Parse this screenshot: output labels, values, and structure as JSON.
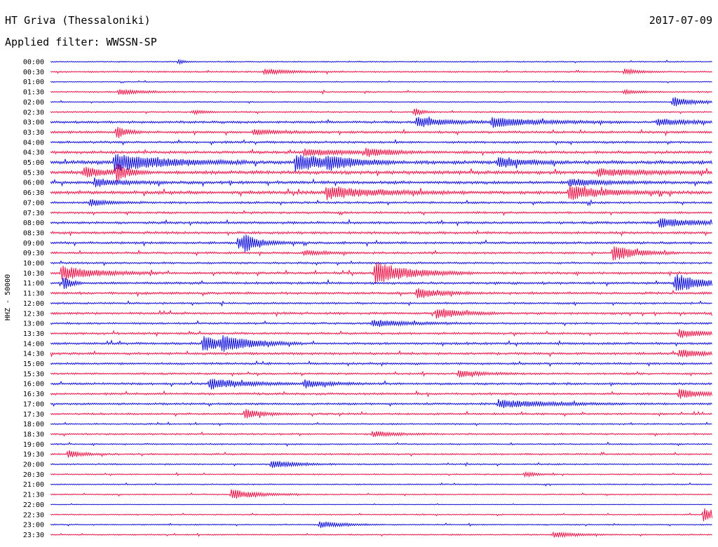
{
  "header": {
    "station": "HT Griva (Thessaloniki)",
    "date": "2017-07-09",
    "filter": "Applied filter: WWSSN-SP"
  },
  "chart_data": {
    "type": "line",
    "ylabel": "HHZ - 50000",
    "row_labels": [
      "00:00",
      "00:30",
      "01:00",
      "01:30",
      "02:00",
      "02:30",
      "03:00",
      "03:30",
      "04:00",
      "04:30",
      "05:00",
      "05:30",
      "06:00",
      "06:30",
      "07:00",
      "07:30",
      "08:00",
      "08:30",
      "09:00",
      "09:30",
      "10:00",
      "10:30",
      "11:00",
      "11:30",
      "12:00",
      "12:30",
      "13:00",
      "13:30",
      "14:00",
      "14:30",
      "15:00",
      "15:30",
      "16:00",
      "16:30",
      "17:00",
      "17:30",
      "18:00",
      "18:30",
      "19:00",
      "19:30",
      "20:00",
      "20:30",
      "21:00",
      "21:30",
      "22:00",
      "22:30",
      "23:00",
      "23:30"
    ],
    "series_colors": [
      "#1010d8",
      "#e8164a"
    ],
    "x_range_minutes": [
      0,
      30
    ],
    "rows_noise": [
      0.5,
      0.6,
      0.4,
      0.6,
      0.5,
      0.6,
      1.0,
      1.0,
      0.9,
      1.1,
      1.5,
      1.4,
      1.2,
      1.4,
      0.9,
      0.9,
      1.0,
      1.0,
      1.0,
      0.9,
      0.8,
      1.0,
      1.0,
      1.0,
      0.8,
      1.0,
      0.8,
      0.9,
      1.0,
      1.0,
      0.9,
      0.8,
      0.9,
      0.9,
      0.9,
      0.8,
      0.6,
      0.7,
      0.6,
      0.7,
      0.6,
      0.5,
      0.5,
      0.5,
      0.3,
      0.5,
      0.5,
      0.5
    ],
    "events": [
      {
        "row": 0,
        "t": 5.8,
        "amp": 3,
        "dur": 0.3
      },
      {
        "row": 1,
        "t": 9.7,
        "amp": 4,
        "dur": 1.2
      },
      {
        "row": 1,
        "t": 26.0,
        "amp": 4,
        "dur": 0.6
      },
      {
        "row": 3,
        "t": 3.1,
        "amp": 4,
        "dur": 0.9
      },
      {
        "row": 3,
        "t": 26.0,
        "amp": 3,
        "dur": 0.6
      },
      {
        "row": 4,
        "t": 28.2,
        "amp": 7,
        "dur": 0.9
      },
      {
        "row": 5,
        "t": 6.5,
        "amp": 3,
        "dur": 0.5
      },
      {
        "row": 5,
        "t": 16.5,
        "amp": 6,
        "dur": 0.3
      },
      {
        "row": 6,
        "t": 16.6,
        "amp": 8,
        "dur": 1.2
      },
      {
        "row": 6,
        "t": 20.0,
        "amp": 7,
        "dur": 2.0
      },
      {
        "row": 6,
        "t": 27.5,
        "amp": 5,
        "dur": 1.2
      },
      {
        "row": 7,
        "t": 3.0,
        "amp": 10,
        "dur": 0.4
      },
      {
        "row": 7,
        "t": 9.2,
        "amp": 4,
        "dur": 1.0
      },
      {
        "row": 9,
        "t": 11.5,
        "amp": 5,
        "dur": 1.5
      },
      {
        "row": 9,
        "t": 14.3,
        "amp": 6,
        "dur": 1.0
      },
      {
        "row": 10,
        "t": 2.9,
        "amp": 14,
        "dur": 2.0
      },
      {
        "row": 10,
        "t": 11.1,
        "amp": 12,
        "dur": 1.5
      },
      {
        "row": 10,
        "t": 12.5,
        "amp": 7,
        "dur": 1.2
      },
      {
        "row": 10,
        "t": 20.3,
        "amp": 8,
        "dur": 1.0
      },
      {
        "row": 11,
        "t": 1.5,
        "amp": 7,
        "dur": 1.0
      },
      {
        "row": 11,
        "t": 3.0,
        "amp": 12,
        "dur": 0.5
      },
      {
        "row": 11,
        "t": 24.8,
        "amp": 5,
        "dur": 2.0
      },
      {
        "row": 12,
        "t": 2.0,
        "amp": 6,
        "dur": 1.2
      },
      {
        "row": 12,
        "t": 23.5,
        "amp": 5,
        "dur": 1.5
      },
      {
        "row": 13,
        "t": 12.5,
        "amp": 9,
        "dur": 2.0
      },
      {
        "row": 13,
        "t": 23.5,
        "amp": 10,
        "dur": 1.5
      },
      {
        "row": 14,
        "t": 1.8,
        "amp": 5,
        "dur": 0.8
      },
      {
        "row": 16,
        "t": 27.6,
        "amp": 7,
        "dur": 1.5
      },
      {
        "row": 18,
        "t": 8.5,
        "amp": 8,
        "dur": 1.0
      },
      {
        "row": 18,
        "t": 8.8,
        "amp": 14,
        "dur": 0.3
      },
      {
        "row": 19,
        "t": 25.5,
        "amp": 12,
        "dur": 1.0
      },
      {
        "row": 19,
        "t": 11.5,
        "amp": 4,
        "dur": 0.8
      },
      {
        "row": 21,
        "t": 0.5,
        "amp": 10,
        "dur": 1.5
      },
      {
        "row": 21,
        "t": 14.7,
        "amp": 16,
        "dur": 1.5
      },
      {
        "row": 22,
        "t": 28.3,
        "amp": 14,
        "dur": 1.2
      },
      {
        "row": 22,
        "t": 0.6,
        "amp": 12,
        "dur": 0.3
      },
      {
        "row": 23,
        "t": 16.6,
        "amp": 8,
        "dur": 1.0
      },
      {
        "row": 25,
        "t": 17.5,
        "amp": 8,
        "dur": 1.0
      },
      {
        "row": 26,
        "t": 14.6,
        "amp": 5,
        "dur": 1.5
      },
      {
        "row": 27,
        "t": 28.5,
        "amp": 6,
        "dur": 1.0
      },
      {
        "row": 28,
        "t": 6.9,
        "amp": 10,
        "dur": 1.5
      },
      {
        "row": 28,
        "t": 7.8,
        "amp": 7,
        "dur": 1.2
      },
      {
        "row": 29,
        "t": 28.5,
        "amp": 6,
        "dur": 1.0
      },
      {
        "row": 31,
        "t": 18.5,
        "amp": 5,
        "dur": 1.0
      },
      {
        "row": 32,
        "t": 7.2,
        "amp": 8,
        "dur": 1.5
      },
      {
        "row": 32,
        "t": 11.5,
        "amp": 6,
        "dur": 1.0
      },
      {
        "row": 33,
        "t": 28.5,
        "amp": 7,
        "dur": 1.0
      },
      {
        "row": 34,
        "t": 20.3,
        "amp": 6,
        "dur": 2.0
      },
      {
        "row": 35,
        "t": 8.8,
        "amp": 7,
        "dur": 0.8
      },
      {
        "row": 37,
        "t": 14.6,
        "amp": 4,
        "dur": 1.0
      },
      {
        "row": 39,
        "t": 0.8,
        "amp": 6,
        "dur": 0.6
      },
      {
        "row": 40,
        "t": 10.0,
        "amp": 6,
        "dur": 1.0
      },
      {
        "row": 41,
        "t": 21.5,
        "amp": 4,
        "dur": 0.5
      },
      {
        "row": 43,
        "t": 8.2,
        "amp": 7,
        "dur": 1.2
      },
      {
        "row": 45,
        "t": 29.6,
        "amp": 10,
        "dur": 0.8
      },
      {
        "row": 46,
        "t": 12.2,
        "amp": 5,
        "dur": 1.0
      },
      {
        "row": 47,
        "t": 22.8,
        "amp": 4,
        "dur": 1.0
      }
    ]
  }
}
